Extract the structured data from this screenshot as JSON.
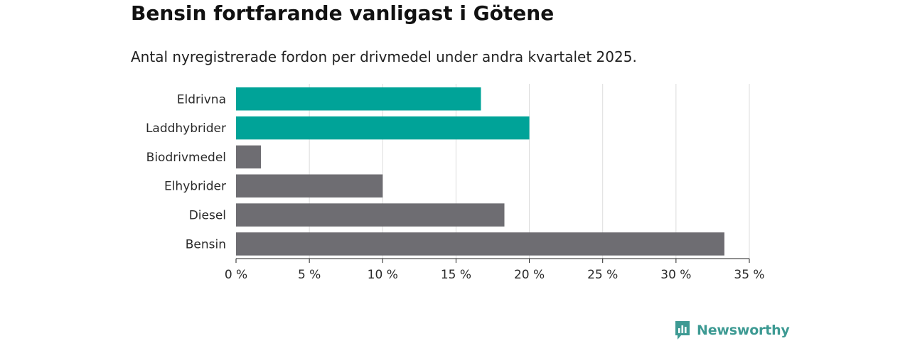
{
  "header": {
    "title": "Bensin fortfarande vanligast i Götene",
    "subtitle": "Antal nyregistrerade fordon per drivmedel under andra kvartalet 2025."
  },
  "chart_data": {
    "type": "bar",
    "orientation": "horizontal",
    "categories": [
      "Eldrivna",
      "Laddhybrider",
      "Biodrivmedel",
      "Elhybrider",
      "Diesel",
      "Bensin"
    ],
    "values": [
      16.7,
      20.0,
      1.7,
      10.0,
      18.3,
      33.3
    ],
    "unit": "%",
    "xlim": [
      0,
      35
    ],
    "x_ticks": [
      0,
      5,
      10,
      15,
      20,
      25,
      30,
      35
    ],
    "x_tick_labels": [
      "0 %",
      "5 %",
      "10 %",
      "15 %",
      "20 %",
      "25 %",
      "30 %",
      "35 %"
    ],
    "grid": true,
    "bar_colors": [
      "#00a398",
      "#00a398",
      "#6e6d72",
      "#6e6d72",
      "#6e6d72",
      "#6e6d72"
    ]
  },
  "branding": {
    "name": "Newsworthy",
    "color": "#3d9a93",
    "icon": "newsworthy-logo-icon"
  }
}
